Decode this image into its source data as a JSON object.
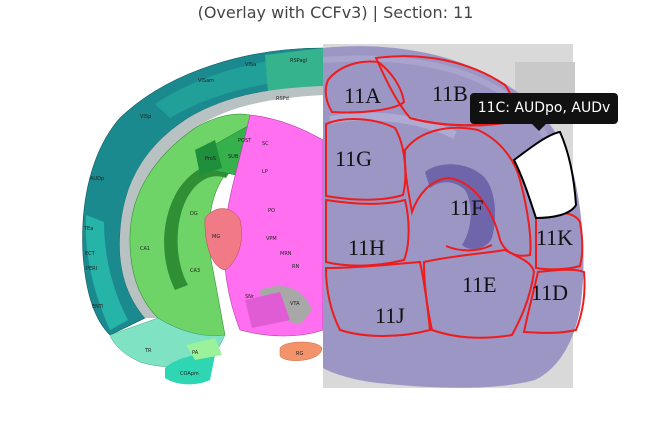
{
  "title": "(Overlay with CCFv3) | Section: 11",
  "tooltip": "11C: AUDpo, AUDv",
  "colors": {
    "outline": "#ee1c1c",
    "highlight_fill": "#ffffff",
    "highlight_outline": "#000000",
    "isocortex": "#1b8a8f",
    "hippocampus": "#6fd468",
    "thalamus": "#ff6ff0",
    "tissue": "#9c96c4"
  },
  "regions": {
    "r11A": "11A",
    "r11B": "11B",
    "r11G": "11G",
    "r11F": "11F",
    "r11K": "11K",
    "r11H": "11H",
    "r11E": "11E",
    "r11D": "11D",
    "r11J": "11J"
  },
  "atlas_labels": {
    "a1": "VISa",
    "a2": "RSPagl",
    "a3": "VISam",
    "a4": "VISp",
    "a5": "RSPd",
    "a6": "AUDp",
    "a7": "TEa",
    "a8": "ECT",
    "a9": "PERI",
    "a10": "ENTl",
    "a11": "CA1",
    "a12": "CA3",
    "a13": "DG",
    "a14": "LP",
    "a15": "PO",
    "a16": "VPM",
    "a17": "RN",
    "a18": "SNr",
    "a19": "MRN",
    "a20": "RG",
    "a21": "TR",
    "a22": "COApm",
    "a23": "PA",
    "a24": "SC",
    "a25": "SUB",
    "a26": "ProS",
    "a27": "POST",
    "a28": "MG",
    "a29": "VTA"
  }
}
